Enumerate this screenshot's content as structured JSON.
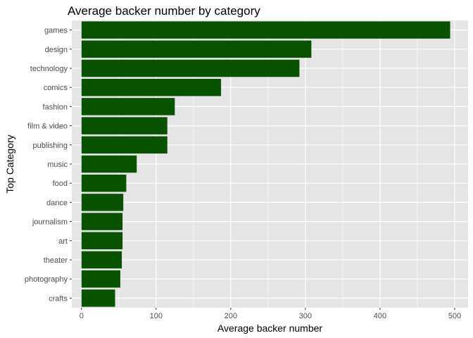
{
  "chart_data": {
    "type": "bar",
    "orientation": "horizontal",
    "title": "Average backer number by category",
    "xlabel": "Average backer number",
    "ylabel": "Top Category",
    "categories": [
      "games",
      "design",
      "technology",
      "comics",
      "fashion",
      "film & video",
      "publishing",
      "music",
      "food",
      "dance",
      "journalism",
      "art",
      "theater",
      "photography",
      "crafts"
    ],
    "values": [
      494,
      308,
      292,
      187,
      125,
      115,
      115,
      74,
      60,
      56,
      55,
      55,
      54,
      52,
      45
    ],
    "xlim": [
      -13,
      518
    ],
    "xticks": [
      0,
      100,
      200,
      300,
      400,
      500
    ],
    "grid": true,
    "bar_color": "#0a5200",
    "panel_background": "#e5e5e5",
    "grid_color": "#ffffff"
  }
}
